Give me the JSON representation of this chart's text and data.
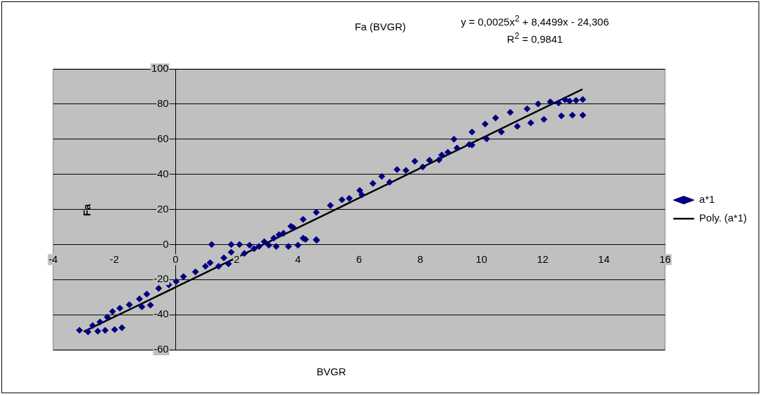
{
  "chart_data": {
    "type": "scatter",
    "title": "Fa (BVGR)",
    "xlabel": "BVGR",
    "ylabel": "Fa",
    "annotations": [
      "y = 0,0025x$^{2}$ + 8,4499x - 24,306",
      "R$^{2}$ = 0,9841"
    ],
    "xlim": [
      -4,
      16
    ],
    "xticks": [
      -4,
      -2,
      0,
      2,
      4,
      6,
      8,
      10,
      12,
      14,
      16
    ],
    "ylim": [
      -60,
      100
    ],
    "yticks": [
      -60,
      -40,
      -20,
      0,
      20,
      40,
      60,
      80,
      100
    ],
    "grid": "y",
    "legend": "right",
    "series": [
      {
        "name": "a*1",
        "type": "scatter",
        "color": "#000080",
        "marker": "diamond",
        "x": [
          -3.14,
          -2.86,
          -2.54,
          -2.3,
          -2.71,
          -2.47,
          -2.23,
          -1.99,
          -1.75,
          -2.06,
          -1.82,
          -1.51,
          -1.18,
          -0.94,
          -0.82,
          -1.1,
          -0.55,
          -0.22,
          0.02,
          0.26,
          0.65,
          0.98,
          1.13,
          1.41,
          1.18,
          1.58,
          1.73,
          1.82,
          2.09,
          1.82,
          2.25,
          2.57,
          2.9,
          3.21,
          3.53,
          3.69,
          4.0,
          4.17,
          4.61,
          3.29,
          2.73,
          3.85,
          2.42,
          3.05,
          3.38,
          3.77,
          4.17,
          4.6,
          5.06,
          5.44,
          5.68,
          6.02,
          6.09,
          6.45,
          6.74,
          7.0,
          7.24,
          7.53,
          7.82,
          8.08,
          8.61,
          4.6,
          4.25,
          8.3,
          8.7,
          8.9,
          9.1,
          9.2,
          9.6,
          9.69,
          9.69,
          10.12,
          10.17,
          10.46,
          10.65,
          10.94,
          11.17,
          11.49,
          11.61,
          11.85,
          12.04,
          12.25,
          12.52,
          12.61,
          12.73,
          12.88,
          12.97,
          13.09,
          13.31,
          13.31
        ],
        "values": [
          -48.9,
          -49.8,
          -49.4,
          -48.9,
          -46.2,
          -44.2,
          -41.4,
          -48.5,
          -47.4,
          -38.2,
          -36.3,
          -34.3,
          -31.0,
          -28.3,
          -34.5,
          -35.5,
          -25.0,
          -23.0,
          -21.1,
          -18.3,
          -15.6,
          -12.4,
          -10.4,
          -12.4,
          0,
          -7.6,
          -11.0,
          0,
          0,
          -4.4,
          -5.1,
          -2.4,
          1.6,
          3.6,
          6.4,
          -1.1,
          -0.4,
          3.6,
          2.4,
          -1.1,
          -1.1,
          9.6,
          -0.4,
          -0.4,
          5.6,
          10.4,
          14.3,
          18.3,
          22.3,
          25.5,
          26.3,
          30.8,
          28.3,
          34.8,
          38.8,
          35.5,
          42.7,
          42.2,
          47.4,
          44.2,
          48.2,
          2.8,
          2.9,
          48,
          51,
          52.5,
          60,
          55,
          57,
          64.1,
          56.7,
          68.6,
          60.2,
          72.1,
          64.1,
          75.3,
          67.3,
          77.3,
          69.3,
          80.1,
          71.3,
          81.3,
          80.6,
          73.3,
          82.5,
          81.7,
          73.7,
          82.1,
          82.6,
          73.7
        ]
      },
      {
        "name": "Poly. (a*1)",
        "type": "line",
        "color": "#000000",
        "marker": "none",
        "line_style": "solid",
        "x": [
          -3,
          -1,
          1,
          3,
          5,
          7,
          9,
          11,
          13.3
        ],
        "values": [
          -49.6,
          -32.8,
          -15.9,
          1.1,
          18.0,
          35.0,
          52.0,
          69.0,
          88.5
        ]
      }
    ]
  }
}
